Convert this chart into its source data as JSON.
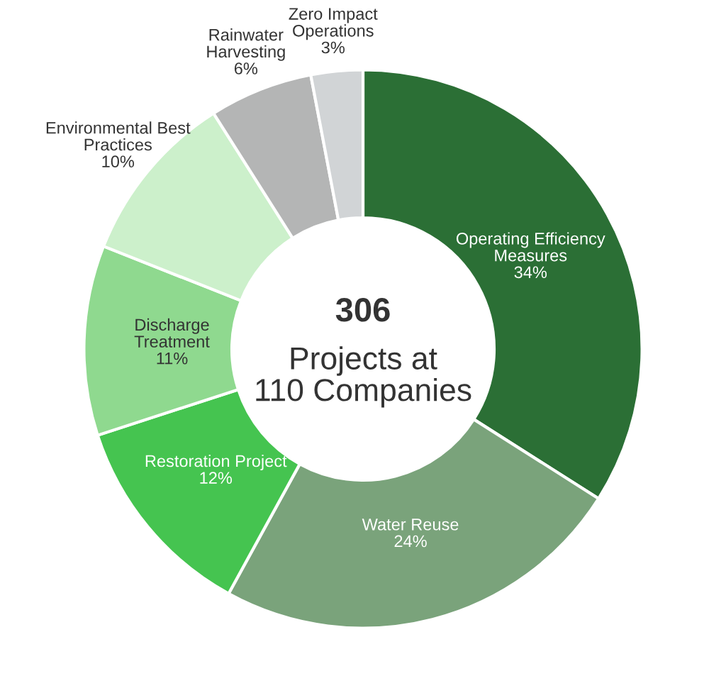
{
  "chart_data": {
    "type": "donut",
    "categories": [
      "Operating Efficiency\nMeasures",
      "Water Reuse",
      "Restoration Project",
      "Discharge\nTreatment",
      "Environmental Best\nPractices",
      "Rainwater\nHarvesting",
      "Zero Impact\nOperations"
    ],
    "values": [
      34,
      24,
      12,
      11,
      10,
      6,
      3
    ],
    "colors": [
      "#2b6f35",
      "#7aa37b",
      "#45c450",
      "#8fd98f",
      "#ccf0cb",
      "#b4b5b5",
      "#d1d4d6"
    ],
    "value_labels": [
      "34%",
      "24%",
      "12%",
      "11%",
      "10%",
      "6%",
      "3%"
    ],
    "annotations": [
      "306",
      "Projects at\n110 Companies"
    ]
  }
}
